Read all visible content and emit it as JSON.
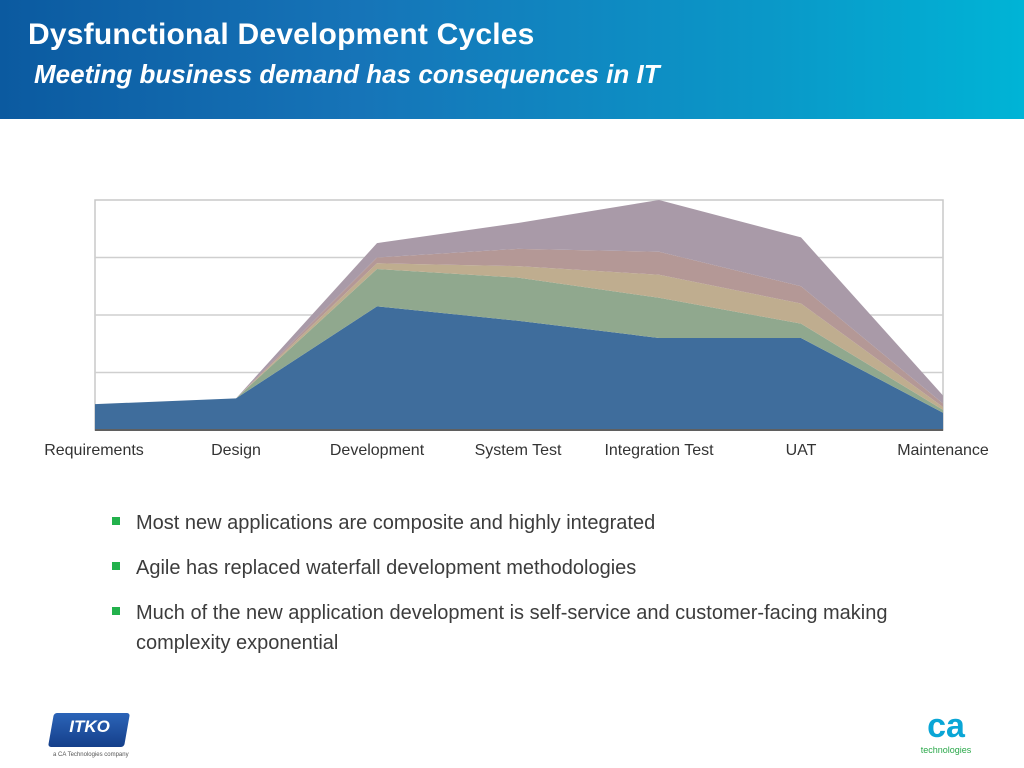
{
  "slide": {
    "title": "Dysfunctional Development Cycles",
    "subtitle": "Meeting business demand has consequences in IT"
  },
  "chart_data": {
    "type": "area",
    "stacked": true,
    "categories": [
      "Requirements",
      "Design",
      "Development",
      "System Test",
      "Integration Test",
      "UAT",
      "Maintenance"
    ],
    "series": [
      {
        "values": [
          0.45,
          0.55,
          2.15,
          1.9,
          1.6,
          1.6,
          0.3
        ],
        "color": "#3f6d9c"
      },
      {
        "values": [
          0.0,
          0.0,
          0.65,
          0.75,
          0.7,
          0.25,
          0.05
        ],
        "color": "#90a88e"
      },
      {
        "values": [
          0.0,
          0.0,
          0.1,
          0.2,
          0.4,
          0.35,
          0.05
        ],
        "color": "#bfad8f"
      },
      {
        "values": [
          0.0,
          0.0,
          0.1,
          0.3,
          0.4,
          0.3,
          0.06
        ],
        "color": "#b49896"
      },
      {
        "values": [
          0.0,
          0.0,
          0.25,
          0.45,
          0.9,
          0.85,
          0.14
        ],
        "color": "#a99aa8"
      }
    ],
    "ylim": [
      0,
      4
    ],
    "grid": true
  },
  "bullets": [
    "Most new applications are composite and highly integrated",
    "Agile has replaced waterfall development methodologies",
    "Much of the new application development is self-service and customer-facing making complexity exponential"
  ],
  "logos": {
    "itko_text": "ITKO",
    "itko_sub": "a CA Technologies company",
    "ca_mark": "ca",
    "ca_sub": "technologies"
  },
  "colors": {
    "header_start": "#0b5aa0",
    "header_end": "#00b4d6",
    "bullet": "#22b14c"
  }
}
